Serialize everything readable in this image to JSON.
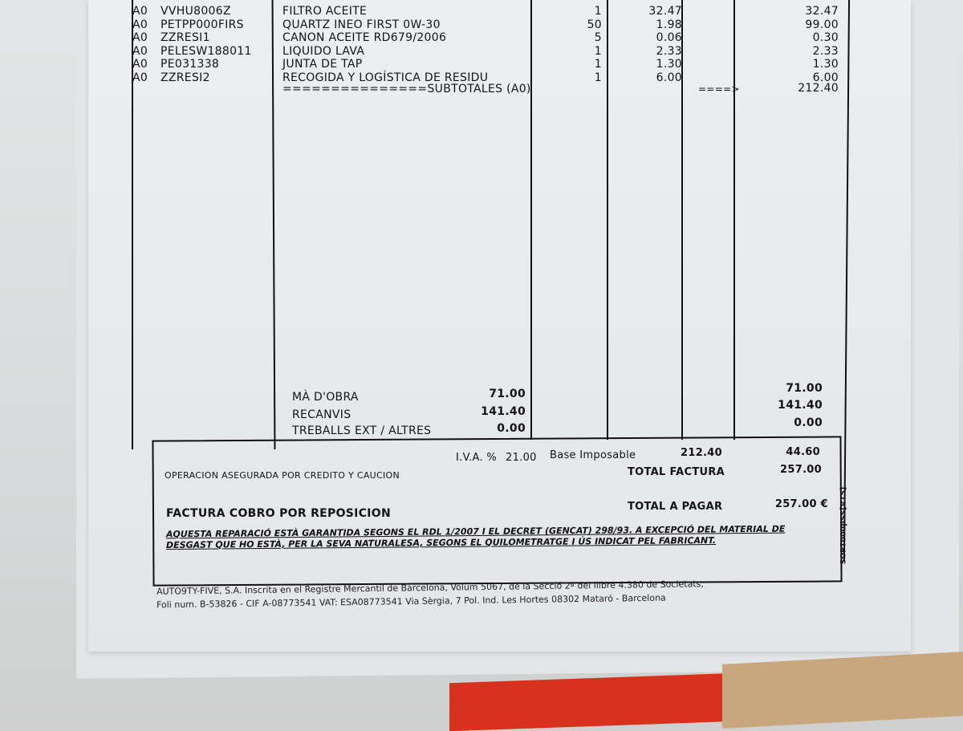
{
  "items": [
    {
      "series": "A0",
      "code": "VVHU8006Z",
      "description": "FILTRO ACEITE",
      "qty": "1",
      "price": "32.47",
      "amount": "32.47"
    },
    {
      "series": "A0",
      "code": "PETPP000FIRS",
      "description": "QUARTZ INEO FIRST 0W-30",
      "qty": "50",
      "price": "1.98",
      "amount": "99.00"
    },
    {
      "series": "A0",
      "code": "ZZRESI1",
      "description": "CANON ACEITE RD679/2006",
      "qty": "5",
      "price": "0.06",
      "amount": "0.30"
    },
    {
      "series": "A0",
      "code": "PELESW188011",
      "description": "LIQUIDO LAVA",
      "qty": "1",
      "price": "2.33",
      "amount": "2.33"
    },
    {
      "series": "A0",
      "code": "PE031338",
      "description": "JUNTA DE TAP",
      "qty": "1",
      "price": "1.30",
      "amount": "1.30"
    },
    {
      "series": "A0",
      "code": "ZZRESI2",
      "description": "RECOGIDA Y LOGÍSTICA DE RESIDU",
      "qty": "1",
      "price": "6.00",
      "amount": "6.00"
    }
  ],
  "subtotal": {
    "label": "===============SUBTOTALES (A0)",
    "arrow": "====>",
    "amount": "212.40"
  },
  "breakdown": [
    {
      "label": "MÀ D'OBRA",
      "value": "71.00",
      "total": "71.00"
    },
    {
      "label": "RECANVIS",
      "value": "141.40",
      "total": "141.40"
    },
    {
      "label": "TREBALLS EXT / ALTRES",
      "value": "0.00",
      "total": "0.00"
    }
  ],
  "summary": {
    "iva_label": "I.V.A. %",
    "iva_rate": "21.00",
    "base_label": "Base Imposable",
    "base_value": "212.40",
    "iva_amount": "44.60",
    "insured_note": "OPERACION ASEGURADA POR CREDITO Y CAUCION",
    "total_factura_label": "TOTAL FACTURA",
    "total_factura": "257.00",
    "payment_note": "FACTURA COBRO POR REPOSICION",
    "total_pagar_label": "TOTAL A PAGAR",
    "total_pagar": "257.00 €",
    "legal_1": "AQUESTA REPARACIÓ ESTÀ GARANTIDA SEGONS EL RDL 1/2007 I EL DECRET (GENCAT) 298/93. A EXCEPCIÓ DEL MATERIAL DE",
    "legal_2": "DESGAST QUE HO ESTÀ, PER LA SEVA NATURALESA, SEGONS EL QUILOMETRATGE I ÚS INDICAT PEL FABRICANT.",
    "side_code": "SOPT000pSS[V15]"
  },
  "footer": {
    "line1": "AUTO9TY-FIVE, S.A. Inscrita en el Registre Mercantil de Barcelona, Volum 5067, de la Secció 2ª del llibre 4.380 de Societats,",
    "line2": "Foli num. B-53826 - CIF A-08773541  VAT: ESA08773541 Via Sèrgia, 7 Pol. Ind. Les Hortes 08302 Mataró - Barcelona"
  }
}
